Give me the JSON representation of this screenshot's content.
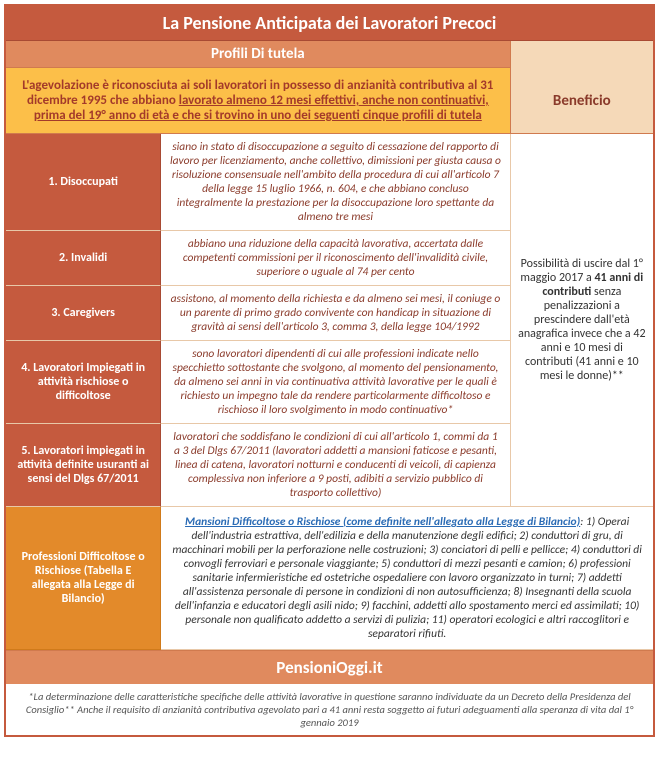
{
  "title": "La Pensione Anticipata dei Lavoratori Precoci",
  "subheader_left": "Profili Di tutela",
  "benefit_header": "Beneficio",
  "intro_pre": "L'agevolazione è riconosciuta ai soli lavoratori in possesso di anzianità contributiva al 31 dicembre 1995  che abbiano ",
  "intro_underlined": "lavorato almeno 12 mesi effettivi, anche non continuativi, prima del 19° anno di età e che si trovino in uno dei seguenti cinque profili di tutela",
  "rows": [
    {
      "label": "1. Disoccupati",
      "desc": "siano in stato di disoccupazione a seguito di cessazione del rapporto di lavoro per licenziamento, anche collettivo, dimissioni per giusta causa o risoluzione consensuale nell'ambito della procedura di cui all'articolo 7 della legge 15 luglio 1966, n. 604, e che abbiano concluso integralmente la prestazione per la disoccupazione loro spettante da almeno tre mesi"
    },
    {
      "label": "2. Invalidi",
      "desc": "abbiano una riduzione della capacità lavorativa, accertata dalle competenti commissioni per il riconoscimento dell'invalidità civile, superiore o uguale al 74 per cento"
    },
    {
      "label": "3. Caregivers",
      "desc": "assistono, al momento della richiesta e da almeno sei mesi, il coniuge o un parente di primo grado convivente con handicap in situazione di gravità ai sensi dell'articolo 3, comma 3, della legge 104/1992"
    },
    {
      "label": "4. Lavoratori Impiegati in attività rischiose o difficoltose",
      "desc": "sono lavoratori dipendenti di cui alle professioni indicate nello specchietto sottostante che svolgono, al momento del pensionamento, da almeno sei anni in via continuativa attività lavorative per le quali è richiesto un impegno tale da rendere particolarmente difficoltoso e rischioso il loro svolgimento in modo continuativo*"
    },
    {
      "label": "5. Lavoratori impiegati in attività definite usuranti ai sensi del Dlgs 67/2011",
      "desc": "lavoratori che soddisfano le condizioni di cui all'articolo 1, commi da 1 a 3 del Dlgs 67/2011 (lavoratori addetti a mansioni faticose e pesanti, linea di catena, lavoratori notturni e conducenti di veicoli, di capienza complessiva non inferiore a 9 posti, adibiti a servizio pubblico di trasporto collettivo)"
    }
  ],
  "benefit_pre": "Possibilità di uscire dal 1° maggio 2017 a ",
  "benefit_bold": "41 anni di contributi",
  "benefit_post": " senza penalizzazioni a prescindere dall'età anagrafica invece che a 42 anni e 10 mesi di contributi (41 anni e 10 mesi le donne)**",
  "orange_label": "Professioni Difficoltose o Rischiose (Tabella E allegata alla Legge di Bilancio)",
  "mansioni_link": "Mansioni Difficoltose o Rischiose (come definite nell'allegato alla Legge di Bilancio)",
  "mansioni_body": ": 1) Operai dell'industria estrattiva, dell'edilizia e della manutenzione degli edifici; 2) conduttori di gru, di macchinari mobili per la perforazione nelle costruzioni; 3) conciatori di pelli e pellicce; 4) conduttori di convogli ferroviari e personale viaggiante; 5) conduttori di mezzi pesanti e camion; 6) professioni sanitarie infermieristiche ed ostetriche ospedaliere con lavoro organizzato in turni; 7) addetti all'assistenza personale di persone in condizioni di non autosufficienza; 8) Insegnanti della scuola dell'infanzia e educatori degli asili nido; 9) facchini, addetti allo spostamento merci ed assimilati; 10) personale non qualificato addetto a servizi di pulizia; 11) operatori ecologici e altri raccoglitori e separatori rifiuti.",
  "brand": "PensioniOggi.it",
  "footnote": "*La determinazione delle caratteristiche specifiche delle attività lavorative in questione saranno individuate da un Decreto della Presidenza del Consiglio** Anche il requisito di anzianità contributiva agevolato pari a 41 anni resta soggetto ai futuri adeguamenti alla speranza di vita dal 1° gennaio 2019"
}
